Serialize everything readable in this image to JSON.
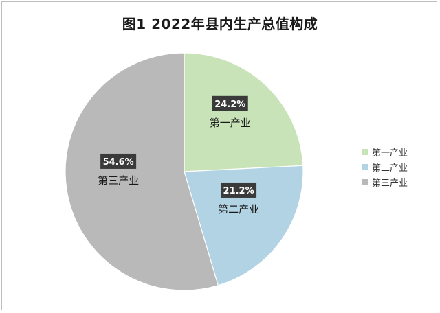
{
  "chart_data": {
    "type": "pie",
    "title": "图1  2022年县内生产总值构成",
    "slices": [
      {
        "name": "第一产业",
        "value": 24.2,
        "label": "24.2%",
        "color": "#c8e3b8"
      },
      {
        "name": "第二产业",
        "value": 21.2,
        "label": "21.2%",
        "color": "#b1d3e3"
      },
      {
        "name": "第三产业",
        "value": 54.6,
        "label": "54.6%",
        "color": "#b9b9b9"
      }
    ],
    "legend_position": "right"
  }
}
